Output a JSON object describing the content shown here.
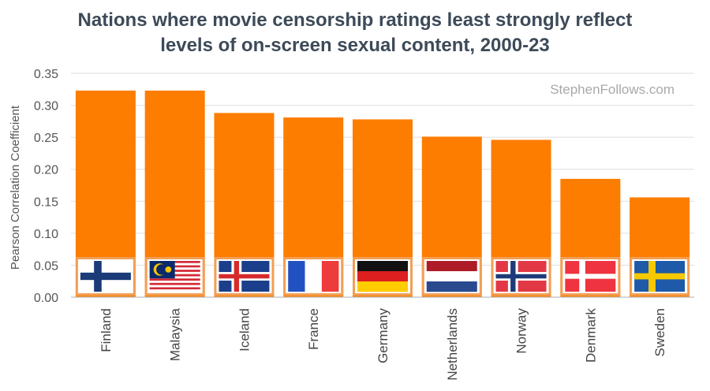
{
  "chart_data": {
    "type": "bar",
    "title_line1": "Nations where movie censorship ratings least strongly reflect",
    "title_line2": "levels of on-screen sexual content, 2000-23",
    "watermark": "StephenFollows.com",
    "ylabel": "Pearson Correlation Coefficient",
    "xlabel": "",
    "ylim": [
      0,
      0.35
    ],
    "yticks": [
      "0.00",
      "0.05",
      "0.10",
      "0.15",
      "0.20",
      "0.25",
      "0.30",
      "0.35"
    ],
    "categories": [
      "Finland",
      "Malaysia",
      "Iceland",
      "France",
      "Germany",
      "Netherlands",
      "Norway",
      "Denmark",
      "Sweden"
    ],
    "values": [
      0.323,
      0.323,
      0.288,
      0.281,
      0.278,
      0.251,
      0.246,
      0.185,
      0.156
    ],
    "flags": [
      "finland-flag",
      "malaysia-flag",
      "iceland-flag",
      "france-flag",
      "germany-flag",
      "netherlands-flag",
      "norway-flag",
      "denmark-flag",
      "sweden-flag"
    ],
    "bar_color": "#fd7d00",
    "grid": true
  }
}
